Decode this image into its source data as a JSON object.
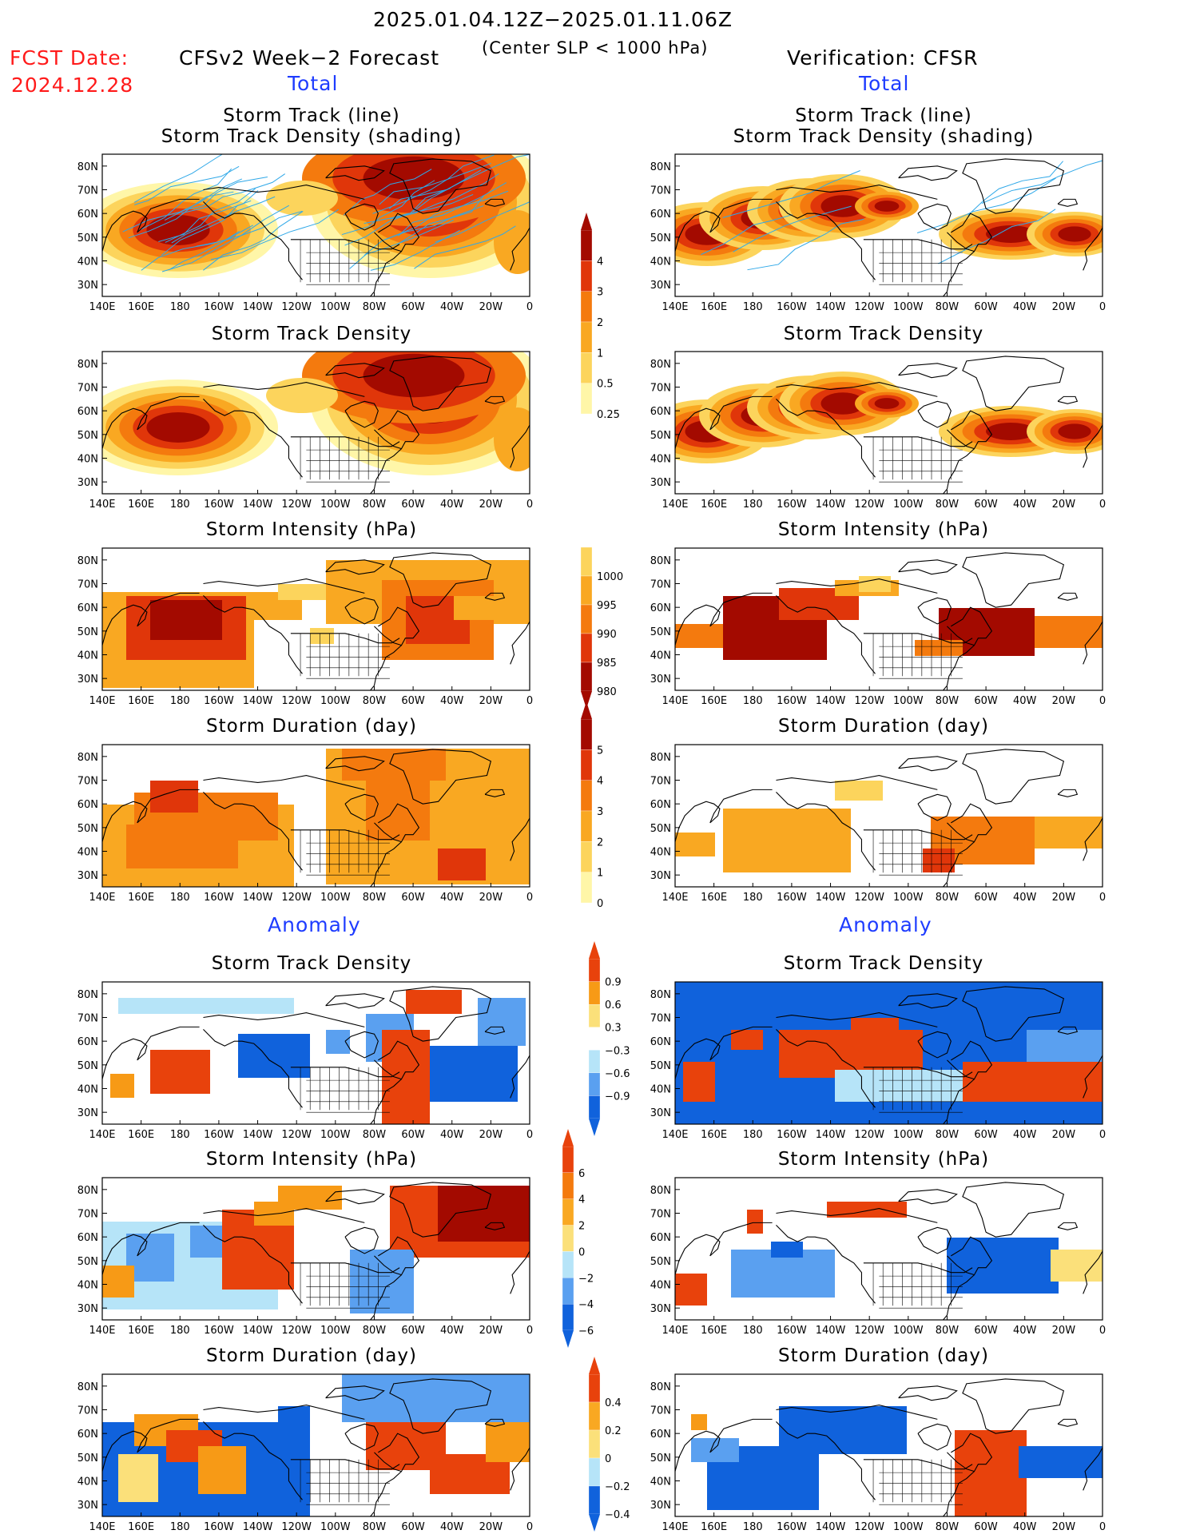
{
  "header": {
    "date_range": "2025.01.04.12Z−2025.01.11.06Z",
    "criterion": "(Center SLP < 1000 hPa)",
    "fcst_label": "FCST Date:",
    "fcst_date": "2024.12.28",
    "left_title": "CFSv2 Week−2 Forecast",
    "right_title": "Verification: CFSR"
  },
  "sections": {
    "total_left": "Total",
    "total_right": "Total",
    "anomaly_left": "Anomaly",
    "anomaly_right": "Anomaly"
  },
  "panel_titles": {
    "track_line": "Storm Track (line)",
    "track_density_shading": "Storm Track Density (shading)",
    "track_density": "Storm Track Density",
    "intensity": "Storm Intensity (hPa)",
    "duration": "Storm Duration (day)"
  },
  "axes": {
    "lon_ticks": [
      "140E",
      "160E",
      "180",
      "160W",
      "140W",
      "120W",
      "100W",
      "80W",
      "60W",
      "40W",
      "20W",
      "0"
    ],
    "lat_ticks": [
      "80N",
      "70N",
      "60N",
      "50N",
      "40N",
      "30N"
    ]
  },
  "colorbars": {
    "density_total": [
      "4",
      "3",
      "2",
      "1",
      "0.5",
      "0.25"
    ],
    "intensity_total": [
      "1000",
      "995",
      "990",
      "985",
      "980"
    ],
    "duration_total": [
      "5",
      "4",
      "3",
      "2",
      "1",
      "0"
    ],
    "density_anom": [
      "0.9",
      "0.6",
      "0.3",
      "−0.3",
      "−0.6",
      "−0.9"
    ],
    "intensity_anom": [
      "6",
      "4",
      "2",
      "0",
      "−2",
      "−4",
      "−6"
    ],
    "duration_anom": [
      "0.4",
      "0.2",
      "0",
      "−0.2",
      "−0.4"
    ]
  },
  "palettes": {
    "warm": [
      "#fff6a8",
      "#fcd45c",
      "#f9a822",
      "#f47a0e",
      "#e0360a",
      "#a30a00"
    ],
    "diverging": [
      "#1062dc",
      "#5aa0f0",
      "#b6e4f8",
      "#ffffff",
      "#fbe07a",
      "#f79a16",
      "#e8420c"
    ],
    "track_line": "#2fa8e8"
  }
}
